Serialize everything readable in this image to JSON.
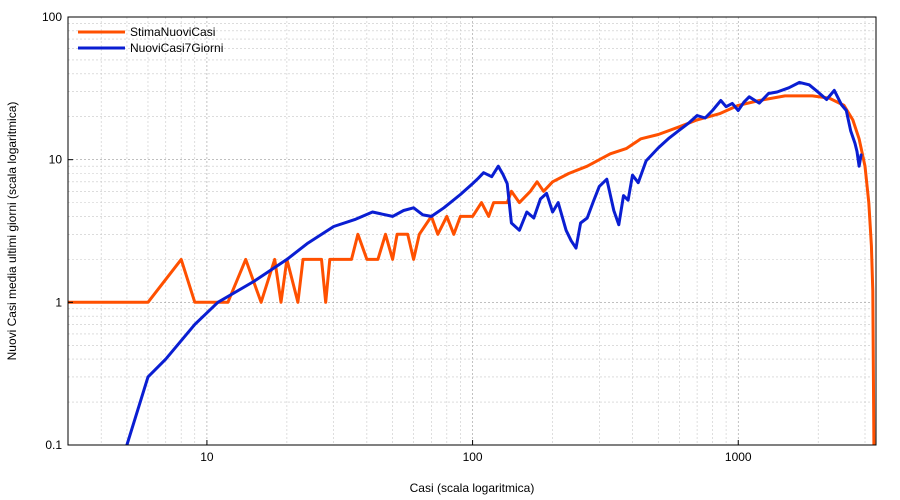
{
  "chart_data": {
    "type": "line",
    "x_scale": "log",
    "y_scale": "log",
    "xlim": [
      3,
      3300
    ],
    "ylim": [
      0.1,
      100
    ],
    "xlabel": "Casi (scala logaritmica)",
    "ylabel": "Nuovi Casi media ultimi giorni (scala logaritmica)",
    "x_ticks": [
      {
        "value": 10,
        "label": "10"
      },
      {
        "value": 100,
        "label": "100"
      },
      {
        "value": 1000,
        "label": "1000"
      }
    ],
    "y_ticks": [
      {
        "value": 0.1,
        "label": "0.1"
      },
      {
        "value": 1,
        "label": "1"
      },
      {
        "value": 10,
        "label": "10"
      },
      {
        "value": 100,
        "label": "100"
      }
    ],
    "grid": true,
    "legend_position": "top-left",
    "series": [
      {
        "name": "StimaNuoviCasi",
        "color": "#ff5000",
        "points": [
          [
            3,
            1
          ],
          [
            6,
            1
          ],
          [
            8,
            2
          ],
          [
            9,
            1
          ],
          [
            12,
            1
          ],
          [
            14,
            2
          ],
          [
            16,
            1
          ],
          [
            18,
            2
          ],
          [
            19,
            1
          ],
          [
            20,
            2
          ],
          [
            22,
            1
          ],
          [
            23,
            2
          ],
          [
            27,
            2
          ],
          [
            28,
            1
          ],
          [
            29,
            2
          ],
          [
            35,
            2
          ],
          [
            37,
            3
          ],
          [
            40,
            2
          ],
          [
            44,
            2
          ],
          [
            47,
            3
          ],
          [
            50,
            2
          ],
          [
            52,
            3
          ],
          [
            57,
            3
          ],
          [
            60,
            2
          ],
          [
            63,
            3
          ],
          [
            70,
            4
          ],
          [
            74,
            3
          ],
          [
            80,
            4
          ],
          [
            85,
            3
          ],
          [
            90,
            4
          ],
          [
            100,
            4
          ],
          [
            108,
            5
          ],
          [
            115,
            4
          ],
          [
            120,
            5
          ],
          [
            135,
            5
          ],
          [
            140,
            6
          ],
          [
            150,
            5
          ],
          [
            165,
            6
          ],
          [
            175,
            7
          ],
          [
            185,
            6
          ],
          [
            200,
            7
          ],
          [
            230,
            8
          ],
          [
            270,
            9
          ],
          [
            300,
            10
          ],
          [
            330,
            11
          ],
          [
            380,
            12
          ],
          [
            430,
            14
          ],
          [
            500,
            15
          ],
          [
            600,
            17
          ],
          [
            700,
            19
          ],
          [
            850,
            21
          ],
          [
            1000,
            24
          ],
          [
            1200,
            26
          ],
          [
            1500,
            28
          ],
          [
            1900,
            28
          ],
          [
            2200,
            27
          ],
          [
            2500,
            24
          ],
          [
            2700,
            19
          ],
          [
            2850,
            14
          ],
          [
            3000,
            9
          ],
          [
            3100,
            5
          ],
          [
            3170,
            2.5
          ],
          [
            3210,
            1.2
          ],
          [
            3240,
            0.1
          ]
        ]
      },
      {
        "name": "NuoviCasi7Giorni",
        "color": "#0a1ed2",
        "points": [
          [
            5,
            0.1
          ],
          [
            6,
            0.3
          ],
          [
            7,
            0.4
          ],
          [
            9,
            0.7
          ],
          [
            11,
            1.0
          ],
          [
            15,
            1.4
          ],
          [
            20,
            2.0
          ],
          [
            24,
            2.6
          ],
          [
            30,
            3.4
          ],
          [
            36,
            3.8
          ],
          [
            42,
            4.3
          ],
          [
            50,
            4.0
          ],
          [
            55,
            4.4
          ],
          [
            60,
            4.6
          ],
          [
            65,
            4.1
          ],
          [
            70,
            4.0
          ],
          [
            78,
            4.6
          ],
          [
            90,
            5.7
          ],
          [
            100,
            6.8
          ],
          [
            105,
            7.4
          ],
          [
            110,
            8.1
          ],
          [
            118,
            7.6
          ],
          [
            125,
            9.0
          ],
          [
            130,
            7.9
          ],
          [
            135,
            6.8
          ],
          [
            140,
            3.6
          ],
          [
            150,
            3.2
          ],
          [
            160,
            4.3
          ],
          [
            170,
            3.9
          ],
          [
            180,
            5.3
          ],
          [
            190,
            5.8
          ],
          [
            200,
            4.3
          ],
          [
            210,
            5.0
          ],
          [
            225,
            3.2
          ],
          [
            235,
            2.7
          ],
          [
            245,
            2.4
          ],
          [
            255,
            3.6
          ],
          [
            270,
            3.9
          ],
          [
            285,
            5.1
          ],
          [
            300,
            6.5
          ],
          [
            320,
            7.3
          ],
          [
            340,
            4.4
          ],
          [
            355,
            3.5
          ],
          [
            370,
            5.6
          ],
          [
            385,
            5.2
          ],
          [
            400,
            7.8
          ],
          [
            420,
            6.9
          ],
          [
            450,
            9.8
          ],
          [
            500,
            12.1
          ],
          [
            550,
            14.2
          ],
          [
            600,
            16.1
          ],
          [
            650,
            18.0
          ],
          [
            700,
            20.4
          ],
          [
            750,
            19.6
          ],
          [
            800,
            22.1
          ],
          [
            860,
            26.0
          ],
          [
            900,
            23.5
          ],
          [
            950,
            24.8
          ],
          [
            1000,
            22.1
          ],
          [
            1050,
            25.3
          ],
          [
            1100,
            27.6
          ],
          [
            1200,
            24.9
          ],
          [
            1300,
            29.1
          ],
          [
            1400,
            29.8
          ],
          [
            1550,
            31.9
          ],
          [
            1700,
            34.8
          ],
          [
            1850,
            33.5
          ],
          [
            2000,
            29.7
          ],
          [
            2150,
            26.4
          ],
          [
            2300,
            30.6
          ],
          [
            2450,
            24.2
          ],
          [
            2550,
            22.1
          ],
          [
            2650,
            15.9
          ],
          [
            2750,
            13.0
          ],
          [
            2800,
            11.4
          ],
          [
            2850,
            9.0
          ],
          [
            2900,
            10.8
          ]
        ]
      }
    ]
  }
}
